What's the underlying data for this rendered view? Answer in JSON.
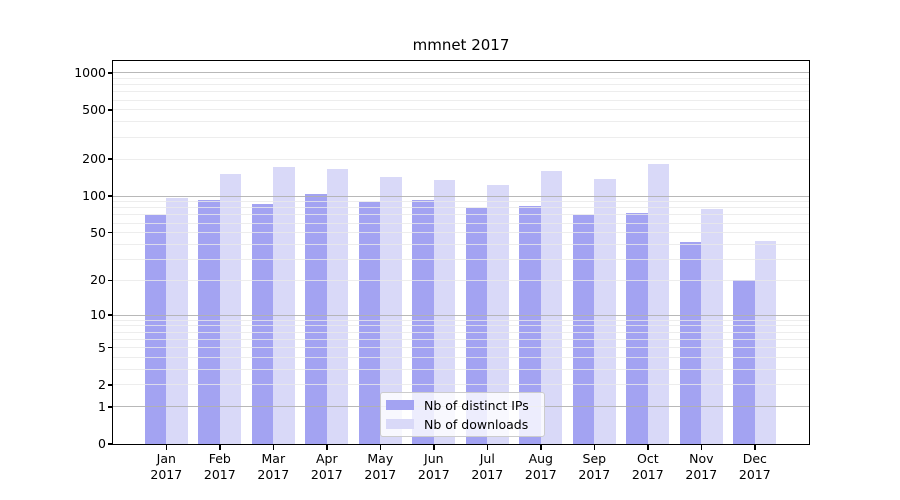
{
  "chart_data": {
    "type": "bar",
    "title": "mmnet 2017",
    "categories": [
      "Jan 2017",
      "Feb 2017",
      "Mar 2017",
      "Apr 2017",
      "May 2017",
      "Jun 2017",
      "Jul 2017",
      "Aug 2017",
      "Sep 2017",
      "Oct 2017",
      "Nov 2017",
      "Dec 2017"
    ],
    "series": [
      {
        "name": "Nb of distinct IPs",
        "color": "#a3a3f2",
        "values": [
          70,
          92,
          86,
          104,
          89,
          93,
          80,
          83,
          70,
          72,
          42,
          20
        ]
      },
      {
        "name": "Nb of downloads",
        "color": "#d9d9f8",
        "values": [
          96,
          152,
          171,
          165,
          142,
          134,
          124,
          160,
          138,
          183,
          78,
          43
        ]
      }
    ],
    "xlabel": "",
    "ylabel": "",
    "y_scale": "symlog",
    "ylim": [
      0,
      1250
    ],
    "grid": "on",
    "grid_drawn_over_bars": true,
    "legend_position": "lower center"
  },
  "axes": {
    "x_tick_months": [
      "Jan",
      "Feb",
      "Mar",
      "Apr",
      "May",
      "Jun",
      "Jul",
      "Aug",
      "Sep",
      "Oct",
      "Nov",
      "Dec"
    ],
    "x_tick_year": "2017",
    "y_tick_values": [
      0,
      1,
      2,
      5,
      10,
      20,
      50,
      100,
      200,
      500,
      1000
    ],
    "y_tick_labels": [
      "0",
      "1",
      "2",
      "5",
      "10",
      "20",
      "50",
      "100",
      "200",
      "500",
      "1000"
    ],
    "y_major_gridline_values": [
      1,
      10,
      100,
      1000
    ],
    "y_minor_gridline_values": [
      2,
      3,
      4,
      5,
      6,
      7,
      8,
      9,
      20,
      30,
      40,
      50,
      60,
      70,
      80,
      90,
      200,
      300,
      400,
      500,
      600,
      700,
      800,
      900
    ]
  },
  "colors": {
    "background": "#ffffff",
    "distinct_ips_bar": "#a3a3f2",
    "downloads_bar": "#d9d9f8",
    "major_gridline": "#b0b0b0",
    "minor_gridline": "#e8e8e8",
    "spine": "#000000",
    "legend_border": "#cccccc"
  }
}
